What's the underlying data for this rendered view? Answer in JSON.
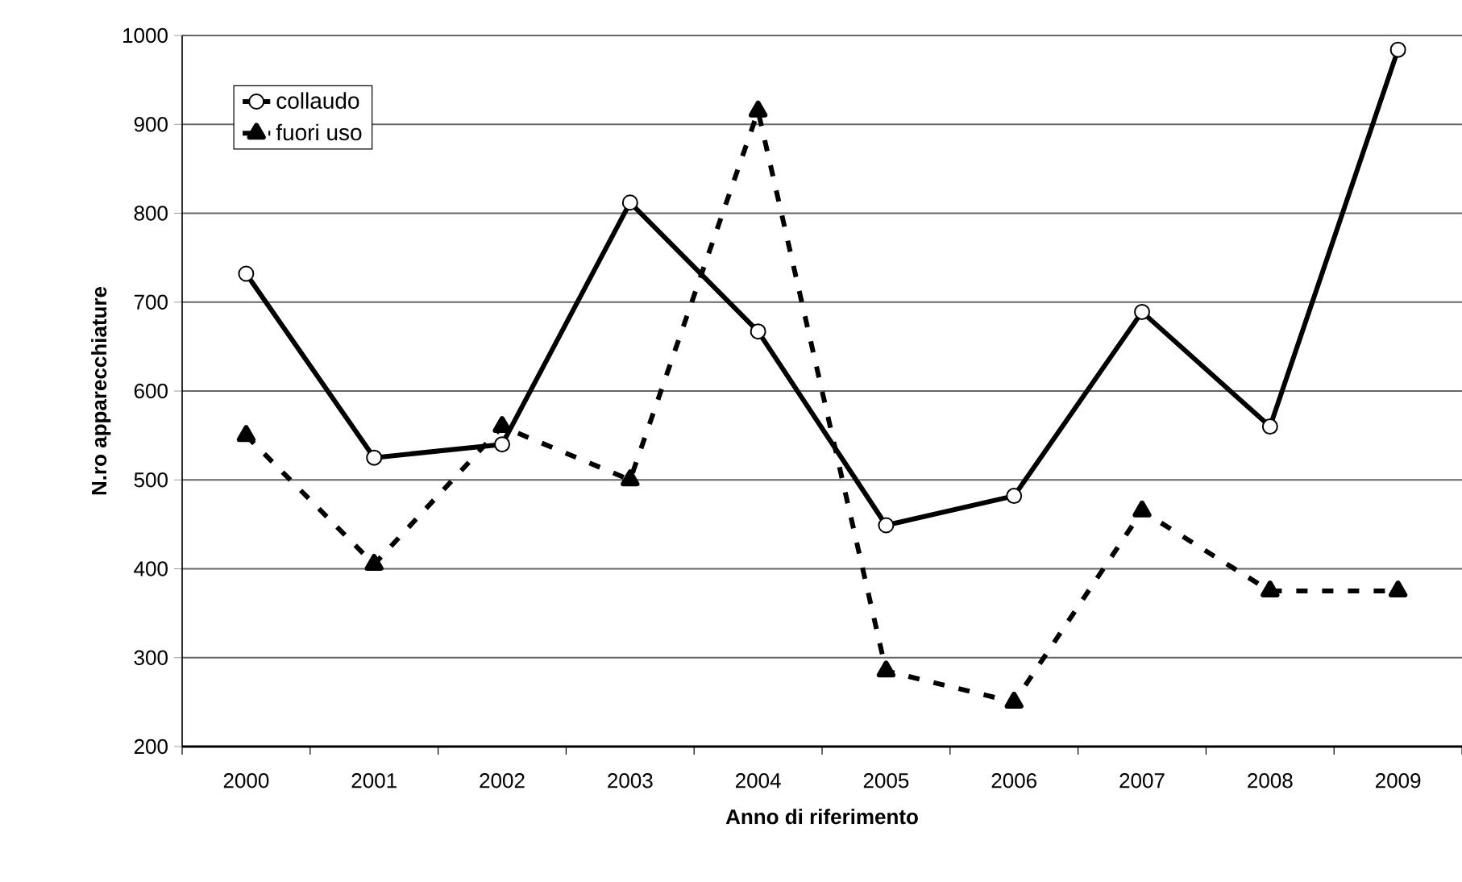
{
  "chart_data": {
    "type": "line",
    "xlabel": "Anno di riferimento",
    "ylabel": "N.ro apparecchiature",
    "categories": [
      "2000",
      "2001",
      "2002",
      "2003",
      "2004",
      "2005",
      "2006",
      "2007",
      "2008",
      "2009"
    ],
    "series": [
      {
        "name": "collaudo",
        "color": "#000000",
        "marker": "circle",
        "line_style": "solid",
        "values": [
          732,
          525,
          540,
          812,
          667,
          449,
          482,
          689,
          560,
          984
        ]
      },
      {
        "name": "fuori uso",
        "color": "#000000",
        "marker": "triangle",
        "line_style": "dashed",
        "values": [
          550,
          405,
          560,
          500,
          915,
          285,
          250,
          465,
          375,
          375
        ]
      }
    ],
    "ylim": [
      200,
      1000
    ],
    "yticks": [
      200,
      300,
      400,
      500,
      600,
      700,
      800,
      900,
      1000
    ],
    "grid": "y",
    "legend": "top left"
  }
}
